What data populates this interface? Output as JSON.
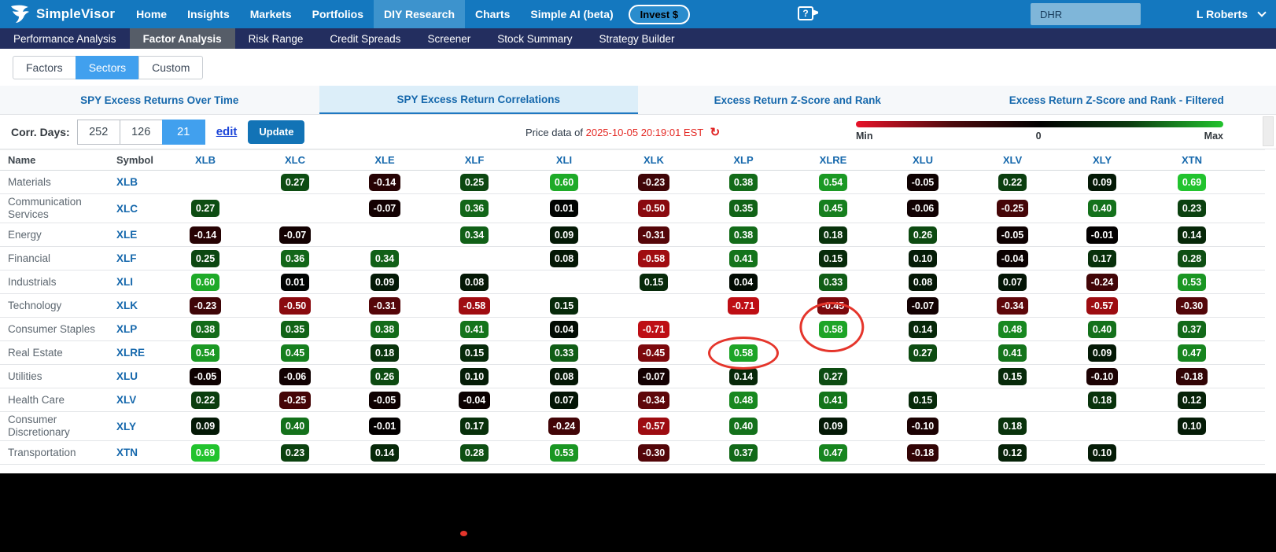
{
  "topnav": {
    "brand": "SimpleVisor",
    "items": [
      "Home",
      "Insights",
      "Markets",
      "Portfolios",
      "DIY Research",
      "Charts",
      "Simple AI (beta)"
    ],
    "active": "DIY Research",
    "invest_label": "Invest $",
    "search_value": "DHR",
    "user_name": "L Roberts",
    "icons": {
      "help": "help-video-icon",
      "user_chevron": "chevron-down-icon",
      "brand": "falcon-logo"
    }
  },
  "subnav": {
    "items": [
      "Performance Analysis",
      "Factor Analysis",
      "Risk Range",
      "Credit Spreads",
      "Screener",
      "Stock Summary",
      "Strategy Builder"
    ],
    "active": "Factor Analysis"
  },
  "view_tabs": {
    "items": [
      "Factors",
      "Sectors",
      "Custom"
    ],
    "active": "Sectors"
  },
  "section_tabs": {
    "items": [
      "SPY Excess Returns Over Time",
      "SPY Excess Return Correlations",
      "Excess Return Z-Score and Rank",
      "Excess Return Z-Score and Rank - Filtered"
    ],
    "active": "SPY Excess Return Correlations"
  },
  "controls": {
    "label": "Corr. Days:",
    "days": [
      "252",
      "126",
      "21"
    ],
    "active_day": "21",
    "edit_label": "edit",
    "update_label": "Update",
    "price_prefix": "Price data of ",
    "price_time": "2025-10-05 20:19:01 EST",
    "refresh_glyph": "↻"
  },
  "legend": {
    "min": "Min",
    "zero": "0",
    "max": "Max",
    "min_color": "#e8132a",
    "zero_color": "#000000",
    "max_color": "#22c32e"
  },
  "matrix": {
    "name_header": "Name",
    "symbol_header": "Symbol",
    "columns": [
      "XLB",
      "XLC",
      "XLE",
      "XLF",
      "XLI",
      "XLK",
      "XLP",
      "XLRE",
      "XLU",
      "XLV",
      "XLY",
      "XTN"
    ],
    "positive_color": "#22c32e",
    "negative_color": "#be0e14",
    "rows": [
      {
        "name": "Materials",
        "symbol": "XLB",
        "values": [
          null,
          "0.27",
          "-0.14",
          "0.25",
          "0.60",
          "-0.23",
          "0.38",
          "0.54",
          "-0.05",
          "0.22",
          "0.09",
          "0.69"
        ]
      },
      {
        "name": "Communication Services",
        "symbol": "XLC",
        "values": [
          "0.27",
          null,
          "-0.07",
          "0.36",
          "0.01",
          "-0.50",
          "0.35",
          "0.45",
          "-0.06",
          "-0.25",
          "0.40",
          "0.23"
        ]
      },
      {
        "name": "Energy",
        "symbol": "XLE",
        "values": [
          "-0.14",
          "-0.07",
          null,
          "0.34",
          "0.09",
          "-0.31",
          "0.38",
          "0.18",
          "0.26",
          "-0.05",
          "-0.01",
          "0.14"
        ]
      },
      {
        "name": "Financial",
        "symbol": "XLF",
        "values": [
          "0.25",
          "0.36",
          "0.34",
          null,
          "0.08",
          "-0.58",
          "0.41",
          "0.15",
          "0.10",
          "-0.04",
          "0.17",
          "0.28"
        ]
      },
      {
        "name": "Industrials",
        "symbol": "XLI",
        "values": [
          "0.60",
          "0.01",
          "0.09",
          "0.08",
          null,
          "0.15",
          "0.04",
          "0.33",
          "0.08",
          "0.07",
          "-0.24",
          "0.53"
        ]
      },
      {
        "name": "Technology",
        "symbol": "XLK",
        "values": [
          "-0.23",
          "-0.50",
          "-0.31",
          "-0.58",
          "0.15",
          null,
          "-0.71",
          "-0.45",
          "-0.07",
          "-0.34",
          "-0.57",
          "-0.30"
        ]
      },
      {
        "name": "Consumer Staples",
        "symbol": "XLP",
        "values": [
          "0.38",
          "0.35",
          "0.38",
          "0.41",
          "0.04",
          "-0.71",
          null,
          "0.58",
          "0.14",
          "0.48",
          "0.40",
          "0.37"
        ]
      },
      {
        "name": "Real Estate",
        "symbol": "XLRE",
        "values": [
          "0.54",
          "0.45",
          "0.18",
          "0.15",
          "0.33",
          "-0.45",
          "0.58",
          null,
          "0.27",
          "0.41",
          "0.09",
          "0.47"
        ]
      },
      {
        "name": "Utilities",
        "symbol": "XLU",
        "values": [
          "-0.05",
          "-0.06",
          "0.26",
          "0.10",
          "0.08",
          "-0.07",
          "0.14",
          "0.27",
          null,
          "0.15",
          "-0.10",
          "-0.18"
        ]
      },
      {
        "name": "Health Care",
        "symbol": "XLV",
        "values": [
          "0.22",
          "-0.25",
          "-0.05",
          "-0.04",
          "0.07",
          "-0.34",
          "0.48",
          "0.41",
          "0.15",
          null,
          "0.18",
          "0.12"
        ]
      },
      {
        "name": "Consumer Discretionary",
        "symbol": "XLY",
        "values": [
          "0.09",
          "0.40",
          "-0.01",
          "0.17",
          "-0.24",
          "-0.57",
          "0.40",
          "0.09",
          "-0.10",
          "0.18",
          null,
          "0.10"
        ]
      },
      {
        "name": "Transportation",
        "symbol": "XTN",
        "values": [
          "0.69",
          "0.23",
          "0.14",
          "0.28",
          "0.53",
          "-0.30",
          "0.37",
          "0.47",
          "-0.18",
          "0.12",
          "0.10",
          null
        ]
      }
    ],
    "annotations": {
      "circled_cells": [
        {
          "row_symbol": "XLP",
          "column": "XLRE",
          "value": "0.58"
        },
        {
          "row_symbol": "XLRE",
          "column": "XLP",
          "value": "0.58"
        }
      ],
      "annotation_color": "#e5352b",
      "stray_mark": true
    }
  }
}
